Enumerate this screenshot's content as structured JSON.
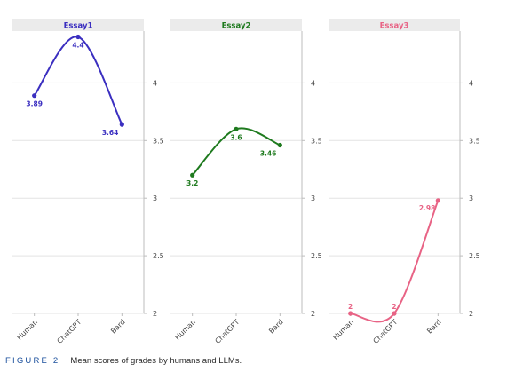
{
  "chart_data": [
    {
      "type": "line",
      "title": "Essay1",
      "categories": [
        "Human",
        "ChatGPT",
        "Bard"
      ],
      "values": [
        3.89,
        4.4,
        3.64
      ],
      "ylim": [
        2,
        4.45
      ],
      "yticks": [
        2,
        2.5,
        3,
        3.5,
        4
      ],
      "grid": true,
      "color": "#3b2fc0",
      "title_color": "#3b2fc0"
    },
    {
      "type": "line",
      "title": "Essay2",
      "categories": [
        "Human",
        "ChatGPT",
        "Bard"
      ],
      "values": [
        3.2,
        3.6,
        3.46
      ],
      "ylim": [
        2,
        4.45
      ],
      "yticks": [
        2,
        2.5,
        3,
        3.5,
        4
      ],
      "grid": true,
      "color": "#1e7a1e",
      "title_color": "#1e7a1e"
    },
    {
      "type": "line",
      "title": "Essay3",
      "categories": [
        "Human",
        "ChatGPT",
        "Bard"
      ],
      "values": [
        2,
        2,
        2.98
      ],
      "ylim": [
        2,
        4.45
      ],
      "yticks": [
        2,
        2.5,
        3,
        3.5,
        4
      ],
      "grid": true,
      "color": "#e86385",
      "title_color": "#e86385"
    }
  ],
  "caption": {
    "label": "FIGURE 2",
    "text": "Mean scores of grades by humans and LLMs."
  },
  "style": {
    "strip_bg": "#ebebeb",
    "grid_color": "#e3e3e3",
    "axis_color": "#bdbdbd",
    "tick_text_color": "#444444"
  }
}
